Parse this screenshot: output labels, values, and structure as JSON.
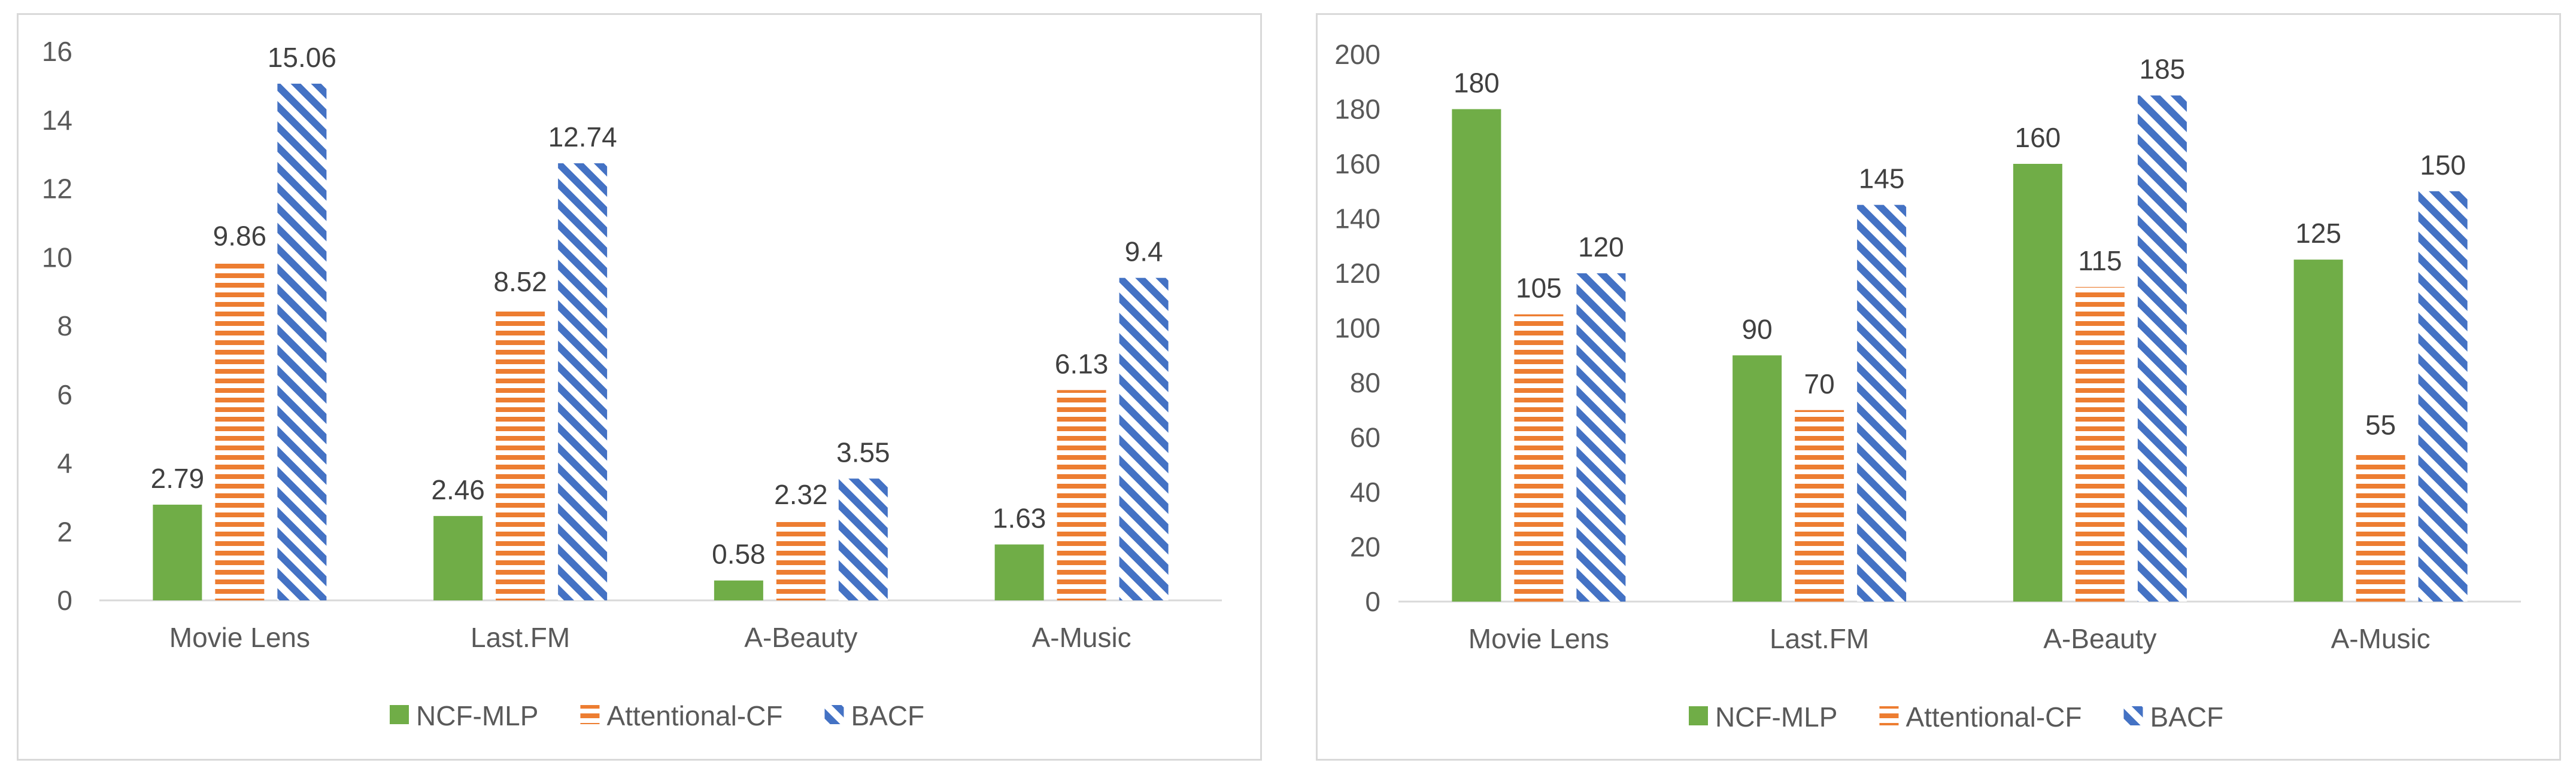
{
  "chart_data": [
    {
      "type": "bar",
      "categories": [
        "Movie Lens",
        "Last.FM",
        "A-Beauty",
        "A-Music"
      ],
      "series": [
        {
          "name": "NCF-MLP",
          "values": [
            2.79,
            2.46,
            0.58,
            1.63
          ]
        },
        {
          "name": "Attentional-CF",
          "values": [
            9.86,
            8.52,
            2.32,
            6.13
          ]
        },
        {
          "name": "BACF",
          "values": [
            15.06,
            12.74,
            3.55,
            9.4
          ]
        }
      ],
      "ylim": [
        0,
        16
      ],
      "yticks": [
        "0",
        "2",
        "4",
        "6",
        "8",
        "10",
        "12",
        "14",
        "16"
      ],
      "grid": false,
      "legend": "bottom"
    },
    {
      "type": "bar",
      "categories": [
        "Movie Lens",
        "Last.FM",
        "A-Beauty",
        "A-Music"
      ],
      "series": [
        {
          "name": "NCF-MLP",
          "values": [
            180,
            90,
            160,
            125
          ]
        },
        {
          "name": "Attentional-CF",
          "values": [
            105,
            70,
            115,
            55
          ]
        },
        {
          "name": "BACF",
          "values": [
            120,
            145,
            185,
            150
          ]
        }
      ],
      "ylim": [
        0,
        200
      ],
      "yticks": [
        "0",
        "20",
        "40",
        "60",
        "80",
        "100",
        "120",
        "140",
        "160",
        "180",
        "200"
      ],
      "grid": false,
      "legend": "bottom"
    }
  ],
  "colors": {
    "ncf_mlp": "#70ad47",
    "attentional_cf": "#ed7d31",
    "bacf": "#4472c4",
    "axis": "#d9d9d9"
  }
}
